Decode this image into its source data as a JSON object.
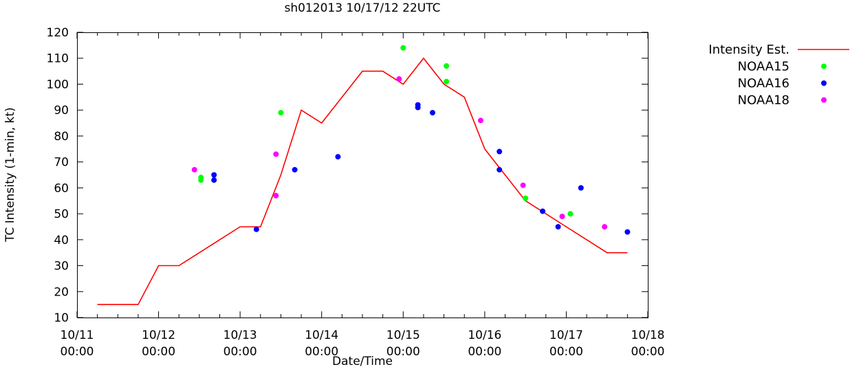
{
  "chart_data": {
    "type": "line",
    "title": "sh012013 10/17/12 22UTC",
    "xlabel": "Date/Time",
    "ylabel": "TC Intensity (1-min, kt)",
    "xlim": [
      0,
      7
    ],
    "ylim": [
      10,
      120
    ],
    "x_ticks": [
      {
        "value": 0,
        "line1": "10/11",
        "line2": "00:00"
      },
      {
        "value": 1,
        "line1": "10/12",
        "line2": "00:00"
      },
      {
        "value": 2,
        "line1": "10/13",
        "line2": "00:00"
      },
      {
        "value": 3,
        "line1": "10/14",
        "line2": "00:00"
      },
      {
        "value": 4,
        "line1": "10/15",
        "line2": "00:00"
      },
      {
        "value": 5,
        "line1": "10/16",
        "line2": "00:00"
      },
      {
        "value": 6,
        "line1": "10/17",
        "line2": "00:00"
      },
      {
        "value": 7,
        "line1": "10/18",
        "line2": "00:00"
      }
    ],
    "y_ticks": [
      "10",
      "20",
      "30",
      "40",
      "50",
      "60",
      "70",
      "80",
      "90",
      "100",
      "110",
      "120"
    ],
    "legend_position": "outside-right",
    "series": [
      {
        "name": "Intensity Est.",
        "kind": "line",
        "color": "#ff0000",
        "x": [
          0.25,
          0.75,
          1.0,
          1.25,
          1.75,
          2.0,
          2.25,
          2.5,
          2.75,
          3.0,
          3.25,
          3.5,
          3.75,
          4.0,
          4.25,
          4.5,
          4.75,
          5.0,
          5.25,
          5.5,
          5.75,
          6.0,
          6.25,
          6.5,
          6.75
        ],
        "y": [
          15,
          15,
          30,
          30,
          40,
          45,
          45,
          65,
          90,
          85,
          95,
          105,
          105,
          100,
          110,
          100,
          95,
          75,
          65,
          55,
          50,
          45,
          40,
          35,
          35
        ]
      },
      {
        "name": "NOAA15",
        "kind": "scatter",
        "color": "#00ff00",
        "x": [
          1.52,
          1.52,
          2.5,
          4.0,
          4.53,
          4.53,
          5.5,
          6.05
        ],
        "y": [
          64,
          63,
          89,
          114,
          107,
          101,
          56,
          50
        ]
      },
      {
        "name": "NOAA16",
        "kind": "scatter",
        "color": "#0000ff",
        "x": [
          1.68,
          1.68,
          2.2,
          2.67,
          3.2,
          4.18,
          4.18,
          4.36,
          5.18,
          5.18,
          5.71,
          5.9,
          6.18,
          6.75
        ],
        "y": [
          65,
          63,
          44,
          67,
          72,
          92,
          91,
          89,
          74,
          67,
          51,
          45,
          60,
          43
        ]
      },
      {
        "name": "NOAA18",
        "kind": "scatter",
        "color": "#ff00ff",
        "x": [
          1.44,
          2.44,
          2.44,
          3.95,
          4.95,
          5.47,
          5.95,
          6.47
        ],
        "y": [
          67,
          73,
          57,
          102,
          86,
          61,
          49,
          45
        ]
      }
    ]
  }
}
